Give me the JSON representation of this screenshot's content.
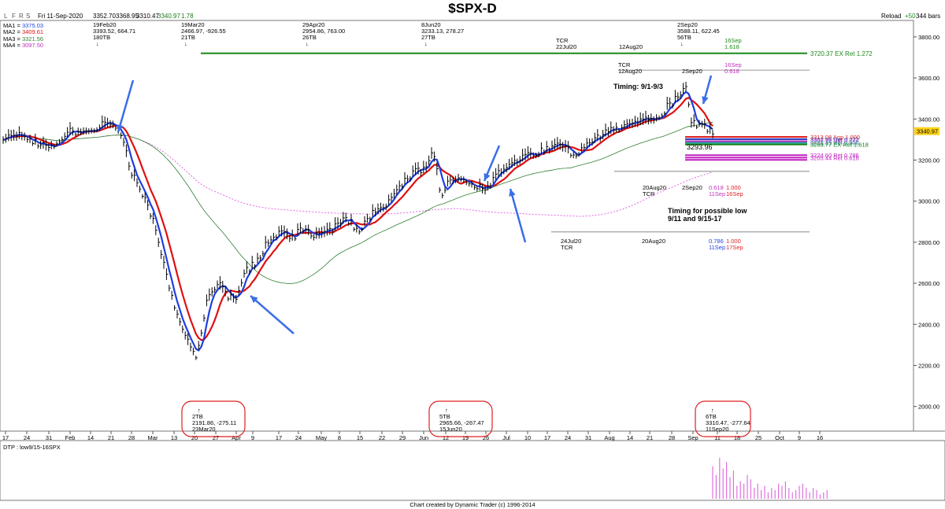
{
  "title": "$SPX-D",
  "toolbar": {
    "buttons": [
      "L",
      "F",
      "R",
      "S"
    ],
    "date": "Fri 11-Sep-2020",
    "open": "3352.70",
    "high": "3368.95",
    "low": "3310.47",
    "close": "3340.97",
    "change": "1.78",
    "reload": "Reload",
    "reload_delta": "+50",
    "bars": "344 bars"
  },
  "moving_averages": [
    {
      "label": "MA1 = ",
      "value": "3375.03",
      "color": "#1f3fe0"
    },
    {
      "label": "MA2 = ",
      "value": "3409.61",
      "color": "#e01010"
    },
    {
      "label": "MA3 = ",
      "value": "3321.56",
      "color": "#2f7f2f"
    },
    {
      "label": "MA4 = ",
      "value": "3097.50",
      "color": "#e040e0"
    }
  ],
  "chart_data": {
    "type": "candlestick",
    "ylim": [
      1880,
      3880
    ],
    "yticks": [
      2000,
      2200,
      2400,
      2600,
      2800,
      3000,
      3200,
      3400,
      3600,
      3800
    ],
    "xticks": [
      "17",
      "24",
      "31",
      "Feb",
      "14",
      "21",
      "28",
      "Mar",
      "13",
      "20",
      "27",
      "Apr",
      "9",
      "17",
      "24",
      "May",
      "8",
      "15",
      "22",
      "29",
      "Jun",
      "12",
      "19",
      "26",
      "Jul",
      "10",
      "17",
      "24",
      "31",
      "Aug",
      "14",
      "21",
      "28",
      "Sep",
      "11",
      "18",
      "25",
      "Oct",
      "9",
      "16"
    ],
    "last_price": "3340.97",
    "swing_labels": [
      {
        "lines": [
          "19Feb20",
          "3393.52, 664.71",
          "180TB",
          "↓"
        ]
      },
      {
        "lines": [
          "19Mar20",
          "2466.97, -926.55",
          "21TB",
          "↓"
        ]
      },
      {
        "lines": [
          "29Apr20",
          "2954.86, 763.00",
          "26TB",
          "↓"
        ]
      },
      {
        "lines": [
          "8Jun20",
          "3233.13, 278.27",
          "27TB",
          "↓"
        ]
      },
      {
        "lines": [
          "2Sep20",
          "3588.11, 622.45",
          "56TB",
          "↓"
        ]
      }
    ],
    "boxed_labels": [
      {
        "lines": [
          "↑",
          "2TB",
          "2191.86, -275.11",
          "23Mar20"
        ]
      },
      {
        "lines": [
          "↑",
          "5TB",
          "2965.66, -267.47",
          "15Jun20"
        ]
      },
      {
        "lines": [
          "↑",
          "6TB",
          "3310.47, -277.64",
          "11Sep20"
        ]
      }
    ],
    "levels": [
      {
        "value": 3720,
        "label": "3720.37 EX Ret 1.272",
        "color": "#1a8a1a"
      },
      {
        "value": 3313,
        "label": "3313.08 Agp 1.000",
        "color": "#e02020"
      },
      {
        "value": 3302,
        "label": "3302.96 Ret 0.272",
        "color": "#2030c0"
      },
      {
        "value": 3292,
        "label": "3292.14 Ret 0.382",
        "color": "#c030c0"
      },
      {
        "value": 3284,
        "label": "3284.45 Ret 0.500",
        "color": "#20a0a0"
      },
      {
        "value": 3276,
        "label": "3269.77 EX Ret 1.618",
        "color": "#108010"
      },
      {
        "value": 3224,
        "label": "3224.60 Ret 0.786",
        "color": "#c020c0"
      },
      {
        "value": 3212,
        "label": "3205.44 Ret 0.618",
        "color": "#c020c0"
      },
      {
        "value": 3201,
        "label": "",
        "color": "#c020c0"
      }
    ],
    "annotations": {
      "timing1": "Timing: 9/1-9/3",
      "timing2a": "Timing for possible low",
      "timing2b": "9/11 and 9/15-17",
      "price_3293": "3293.96",
      "tcr_top_1": "TCR",
      "tcr_top_2": "22Jul20",
      "tcr_top_3": "12Aug20",
      "tcr_top_4": "16Sep",
      "tcr_top_5": "1.618",
      "tcr_mid_1": "TCR",
      "tcr_mid_2": "12Aug20",
      "tcr_mid_3": "2Sep20",
      "tcr_mid_4": "16Sep",
      "tcr_mid_5": "0.618",
      "mid_1": "20Aug20",
      "mid_2": "TCR",
      "mid_3": "2Sep20",
      "mid_4": "0.618",
      "mid_5": "1.000",
      "mid_6": "11Sep",
      "mid_7": "16Sep",
      "low_1": "24Jul20",
      "low_2": "TCR",
      "low_3": "20Aug20",
      "low_4": "0.786",
      "low_5": "1.000",
      "low_6": "11Sep",
      "low_7": "17Sep"
    },
    "subpanel_label": "DTP : low9/15-16SPX",
    "subpanel_bars": [
      0.75,
      0.55,
      0.95,
      0.7,
      0.85,
      0.5,
      0.65,
      0.3,
      0.4,
      0.35,
      0.55,
      0.45,
      0.25,
      0.35,
      0.2,
      0.3,
      0.15,
      0.25,
      0.2,
      0.35,
      0.3,
      0.4,
      0.25,
      0.15,
      0.2,
      0.3,
      0.35,
      0.25,
      0.15,
      0.25,
      0.2,
      0.1,
      0.15,
      0.2
    ]
  },
  "credit": "Chart created by Dynamic Trader  (c)  1996-2014"
}
